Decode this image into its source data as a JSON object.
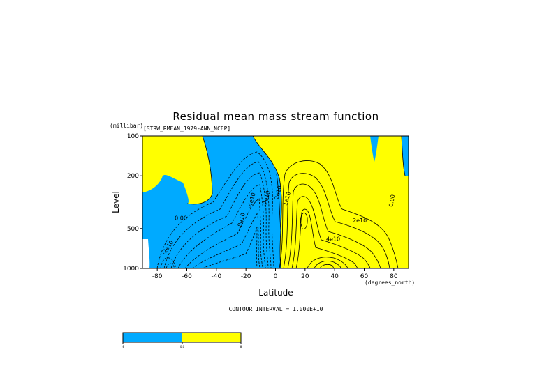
{
  "chart_data": {
    "type": "heatmap",
    "title": "Residual mean mass stream function",
    "subtitle": "[STRW_RMEAN_1979-ANN_NCEP]",
    "xlabel": "Latitude",
    "xunits": "(degrees_north)",
    "ylabel": "Level",
    "yunits": "(millibar)",
    "xlim": [
      -90,
      90
    ],
    "ylim": [
      1000,
      100
    ],
    "yscale": "log",
    "x_ticks": [
      -80,
      -60,
      -40,
      -20,
      0,
      20,
      40,
      60,
      80
    ],
    "x_tick_labels": [
      "-80",
      "-60",
      "-40",
      "-20",
      "0",
      "20",
      "40",
      "60",
      "80"
    ],
    "y_ticks": [
      100,
      200,
      500,
      1000
    ],
    "y_tick_labels": [
      "100",
      "200",
      "500",
      "1000"
    ],
    "contour_interval_text": "CONTOUR INTERVAL = 1.000E+10",
    "contour_labels": [
      {
        "text": "0.00",
        "x": -64,
        "y": 430
      },
      {
        "text": "0.00",
        "x": 80,
        "y": 310
      },
      {
        "text": "2e10",
        "x": 57,
        "y": 450
      },
      {
        "text": "4e10",
        "x": 39,
        "y": 620
      },
      {
        "text": "-2e10",
        "x": -72,
        "y": 710
      },
      {
        "text": "-8e10",
        "x": -22,
        "y": 440
      },
      {
        "text": "-4e10",
        "x": -15,
        "y": 310
      },
      {
        "text": "-2e10",
        "x": -5,
        "y": 300
      },
      {
        "text": "2e10",
        "x": 3,
        "y": 270
      },
      {
        "text": "1e10",
        "x": 9,
        "y": 300
      }
    ],
    "sign_regions": {
      "negative_color": "#00aaff",
      "positive_color": "#ffff00"
    },
    "colorbar": {
      "colors": [
        "#00aaff",
        "#ffff00"
      ],
      "labels": [
        "-8",
        "0.0",
        "8"
      ]
    }
  }
}
